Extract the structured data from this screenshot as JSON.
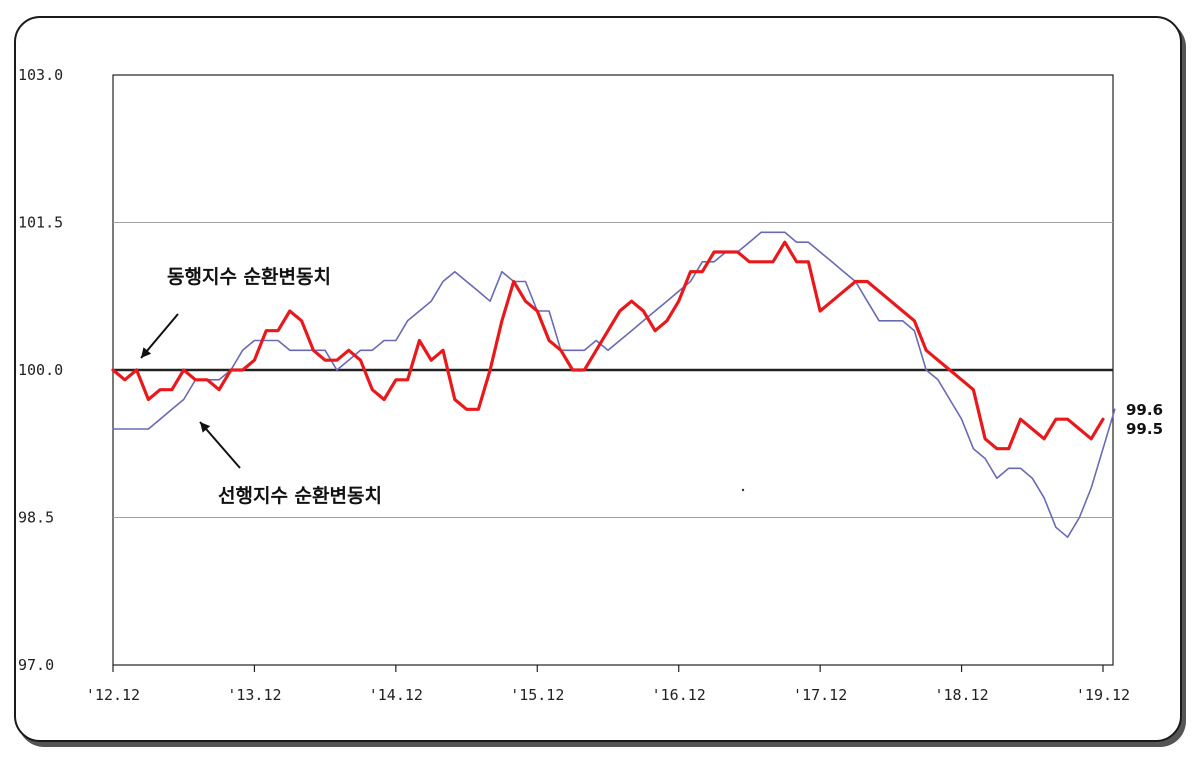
{
  "chart_data": {
    "type": "line",
    "title": "",
    "xlabel": "",
    "ylabel": "",
    "ylim": [
      97.0,
      103.0
    ],
    "y_ticks": [
      "103.0",
      "101.5",
      "100.0",
      "98.5",
      "97.0"
    ],
    "x_range": [
      "2012-12",
      "2019-12"
    ],
    "x_ticks": [
      {
        "date": "2012-12",
        "label": "'12.12"
      },
      {
        "date": "2013-12",
        "label": "'13.12"
      },
      {
        "date": "2014-12",
        "label": "'14.12"
      },
      {
        "date": "2015-12",
        "label": "'15.12"
      },
      {
        "date": "2016-12",
        "label": "'16.12"
      },
      {
        "date": "2017-12",
        "label": "'17.12"
      },
      {
        "date": "2018-12",
        "label": "'18.12"
      },
      {
        "date": "2019-12",
        "label": "'19.12"
      }
    ],
    "gridlines_y": [
      101.5,
      98.5
    ],
    "baseline_y": 100.0,
    "series": [
      {
        "name": "동행지수 순환변동치",
        "color": "#e8191c",
        "start": "2012-12",
        "values": [
          100.0,
          99.9,
          100.0,
          99.7,
          99.8,
          99.8,
          100.0,
          99.9,
          99.9,
          99.8,
          100.0,
          100.0,
          100.1,
          100.4,
          100.4,
          100.6,
          100.5,
          100.2,
          100.1,
          100.1,
          100.2,
          100.1,
          99.8,
          99.7,
          99.9,
          99.9,
          100.3,
          100.1,
          100.2,
          99.7,
          99.6,
          99.6,
          100.0,
          100.5,
          100.9,
          100.7,
          100.6,
          100.3,
          100.2,
          100.0,
          100.0,
          100.2,
          100.4,
          100.6,
          100.7,
          100.6,
          100.4,
          100.5,
          100.7,
          101.0,
          101.0,
          101.2,
          101.2,
          101.2,
          101.1,
          101.1,
          101.1,
          101.3,
          101.1,
          101.1,
          100.6,
          100.7,
          100.8,
          100.9,
          100.9,
          100.8,
          100.7,
          100.6,
          100.5,
          100.2,
          100.1,
          100.0,
          99.9,
          99.8,
          99.3,
          99.2,
          99.2,
          99.5,
          99.4,
          99.3,
          99.5,
          99.5,
          99.4,
          99.3,
          99.5
        ]
      },
      {
        "name": "선행지수 순환변동치",
        "color": "#6a6ab4",
        "start": "2012-12",
        "values": [
          99.4,
          99.4,
          99.4,
          99.4,
          99.5,
          99.6,
          99.7,
          99.9,
          99.9,
          99.9,
          100.0,
          100.2,
          100.3,
          100.3,
          100.3,
          100.2,
          100.2,
          100.2,
          100.2,
          100.0,
          100.1,
          100.2,
          100.2,
          100.3,
          100.3,
          100.5,
          100.6,
          100.7,
          100.9,
          101.0,
          100.9,
          100.8,
          100.7,
          101.0,
          100.9,
          100.9,
          100.6,
          100.6,
          100.2,
          100.2,
          100.2,
          100.3,
          100.2,
          100.3,
          100.4,
          100.5,
          100.6,
          100.7,
          100.8,
          100.9,
          101.1,
          101.1,
          101.2,
          101.2,
          101.3,
          101.4,
          101.4,
          101.4,
          101.3,
          101.3,
          101.2,
          101.1,
          101.0,
          100.9,
          100.7,
          100.5,
          100.5,
          100.5,
          100.4,
          100.0,
          99.9,
          99.7,
          99.5,
          99.2,
          99.1,
          98.9,
          99.0,
          99.0,
          98.9,
          98.7,
          98.4,
          98.3,
          98.5,
          98.8,
          99.2,
          99.6
        ]
      }
    ],
    "annotations": {
      "coincident_label": "동행지수 순환변동치",
      "leading_label": "선행지수 순환변동치"
    },
    "end_labels": [
      "99.6",
      "99.5"
    ]
  }
}
